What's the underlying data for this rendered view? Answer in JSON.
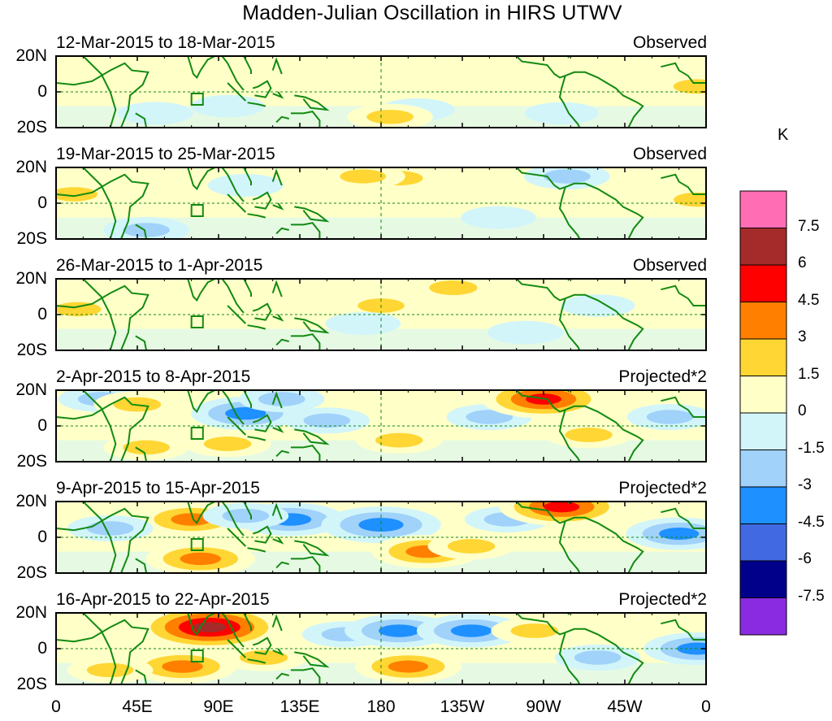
{
  "chart_data": {
    "type": "heatmap",
    "title": "Madden-Julian Oscillation in HIRS UTWV",
    "x_tick_labels": [
      "0",
      "45E",
      "90E",
      "135E",
      "180",
      "135W",
      "90W",
      "45W",
      "0"
    ],
    "y_tick_labels": [
      "20N",
      "0",
      "20S"
    ],
    "xlim": [
      0,
      360
    ],
    "ylim": [
      -20,
      20
    ],
    "colorbar": {
      "unit": "K",
      "labels": [
        "7.5",
        "6",
        "4.5",
        "3",
        "1.5",
        "0",
        "-1.5",
        "-3",
        "-4.5",
        "-6",
        "-7.5"
      ],
      "levels": [
        7.5,
        6,
        4.5,
        3,
        1.5,
        0,
        -1.5,
        -3,
        -4.5,
        -6,
        -7.5
      ],
      "colors": [
        "#ff6eb4",
        "#a52a2a",
        "#ff0000",
        "#ff7f00",
        "#ffd633",
        "#ffffc8",
        "#d2f5fa",
        "#a0d2fa",
        "#1e90ff",
        "#4169e1",
        "#00008b",
        "#8a2be2"
      ]
    },
    "panels": [
      {
        "period": "12-Mar-2015 to 18-Mar-2015",
        "type": "Observed",
        "features": [
          {
            "lon": 20,
            "lat": 10,
            "v": 0.8
          },
          {
            "lon": 55,
            "lat": -12,
            "v": -0.8
          },
          {
            "lon": 95,
            "lat": -8,
            "v": -0.7
          },
          {
            "lon": 120,
            "lat": 12,
            "v": 0.7
          },
          {
            "lon": 160,
            "lat": 5,
            "v": 0.6
          },
          {
            "lon": 200,
            "lat": -10,
            "v": -0.8
          },
          {
            "lon": 240,
            "lat": 8,
            "v": 0.7
          },
          {
            "lon": 280,
            "lat": -12,
            "v": -0.7
          },
          {
            "lon": 355,
            "lat": 3,
            "v": 1.7
          },
          {
            "lon": 185,
            "lat": -14,
            "v": 1.6
          }
        ]
      },
      {
        "period": "19-Mar-2015 to 25-Mar-2015",
        "type": "Observed",
        "features": [
          {
            "lon": 10,
            "lat": 5,
            "v": 1.6
          },
          {
            "lon": 50,
            "lat": -15,
            "v": -1.6
          },
          {
            "lon": 105,
            "lat": 10,
            "v": -0.8
          },
          {
            "lon": 190,
            "lat": 14,
            "v": 1.7
          },
          {
            "lon": 170,
            "lat": 15,
            "v": 1.5
          },
          {
            "lon": 245,
            "lat": -8,
            "v": -0.8
          },
          {
            "lon": 283,
            "lat": 15,
            "v": -1.6
          },
          {
            "lon": 355,
            "lat": 2,
            "v": 1.6
          }
        ]
      },
      {
        "period": "26-Mar-2015 to 1-Apr-2015",
        "type": "Observed",
        "features": [
          {
            "lon": 12,
            "lat": 3,
            "v": 1.6
          },
          {
            "lon": 40,
            "lat": 12,
            "v": 0.7
          },
          {
            "lon": 180,
            "lat": 5,
            "v": 1.6
          },
          {
            "lon": 220,
            "lat": 15,
            "v": 1.8
          },
          {
            "lon": 170,
            "lat": -5,
            "v": -0.8
          },
          {
            "lon": 260,
            "lat": -10,
            "v": -0.9
          },
          {
            "lon": 300,
            "lat": 5,
            "v": -0.7
          }
        ]
      },
      {
        "period": "2-Apr-2015 to 8-Apr-2015",
        "type": "Projected*2",
        "features": [
          {
            "lon": 25,
            "lat": 15,
            "v": -1.6
          },
          {
            "lon": 45,
            "lat": 12,
            "v": 1.7
          },
          {
            "lon": 105,
            "lat": 7,
            "v": -3.4
          },
          {
            "lon": 125,
            "lat": 15,
            "v": -1.6
          },
          {
            "lon": 150,
            "lat": 3,
            "v": -1.6
          },
          {
            "lon": 95,
            "lat": -10,
            "v": 1.7
          },
          {
            "lon": 190,
            "lat": -8,
            "v": 1.7
          },
          {
            "lon": 240,
            "lat": 5,
            "v": -1.6
          },
          {
            "lon": 270,
            "lat": 15,
            "v": 4.6
          },
          {
            "lon": 295,
            "lat": -5,
            "v": 1.7
          },
          {
            "lon": 50,
            "lat": -12,
            "v": 1.6
          },
          {
            "lon": 340,
            "lat": 5,
            "v": -1.6
          }
        ]
      },
      {
        "period": "9-Apr-2015 to 15-Apr-2015",
        "type": "Projected*2",
        "features": [
          {
            "lon": 75,
            "lat": 10,
            "v": 3.4
          },
          {
            "lon": 80,
            "lat": -12,
            "v": 3.4
          },
          {
            "lon": 130,
            "lat": 10,
            "v": -3.4
          },
          {
            "lon": 105,
            "lat": 12,
            "v": -1.6
          },
          {
            "lon": 180,
            "lat": 7,
            "v": -4.2
          },
          {
            "lon": 205,
            "lat": -8,
            "v": 3.4
          },
          {
            "lon": 250,
            "lat": 10,
            "v": -1.6
          },
          {
            "lon": 280,
            "lat": 17,
            "v": 4.6
          },
          {
            "lon": 230,
            "lat": -5,
            "v": 1.7
          },
          {
            "lon": 345,
            "lat": 2,
            "v": -3.2
          },
          {
            "lon": 30,
            "lat": 5,
            "v": -1.6
          }
        ]
      },
      {
        "period": "16-Apr-2015 to 22-Apr-2015",
        "type": "Projected*2",
        "features": [
          {
            "lon": 85,
            "lat": 12,
            "v": 6.2
          },
          {
            "lon": 70,
            "lat": -10,
            "v": 3.4
          },
          {
            "lon": 115,
            "lat": -5,
            "v": 1.8
          },
          {
            "lon": 160,
            "lat": 8,
            "v": -1.6
          },
          {
            "lon": 190,
            "lat": 10,
            "v": -3.4
          },
          {
            "lon": 230,
            "lat": 10,
            "v": -3.4
          },
          {
            "lon": 195,
            "lat": -10,
            "v": 3.2
          },
          {
            "lon": 265,
            "lat": 10,
            "v": 1.7
          },
          {
            "lon": 300,
            "lat": -5,
            "v": -1.6
          },
          {
            "lon": 355,
            "lat": 0,
            "v": -3.2
          },
          {
            "lon": 30,
            "lat": -12,
            "v": 1.6
          }
        ]
      }
    ]
  }
}
